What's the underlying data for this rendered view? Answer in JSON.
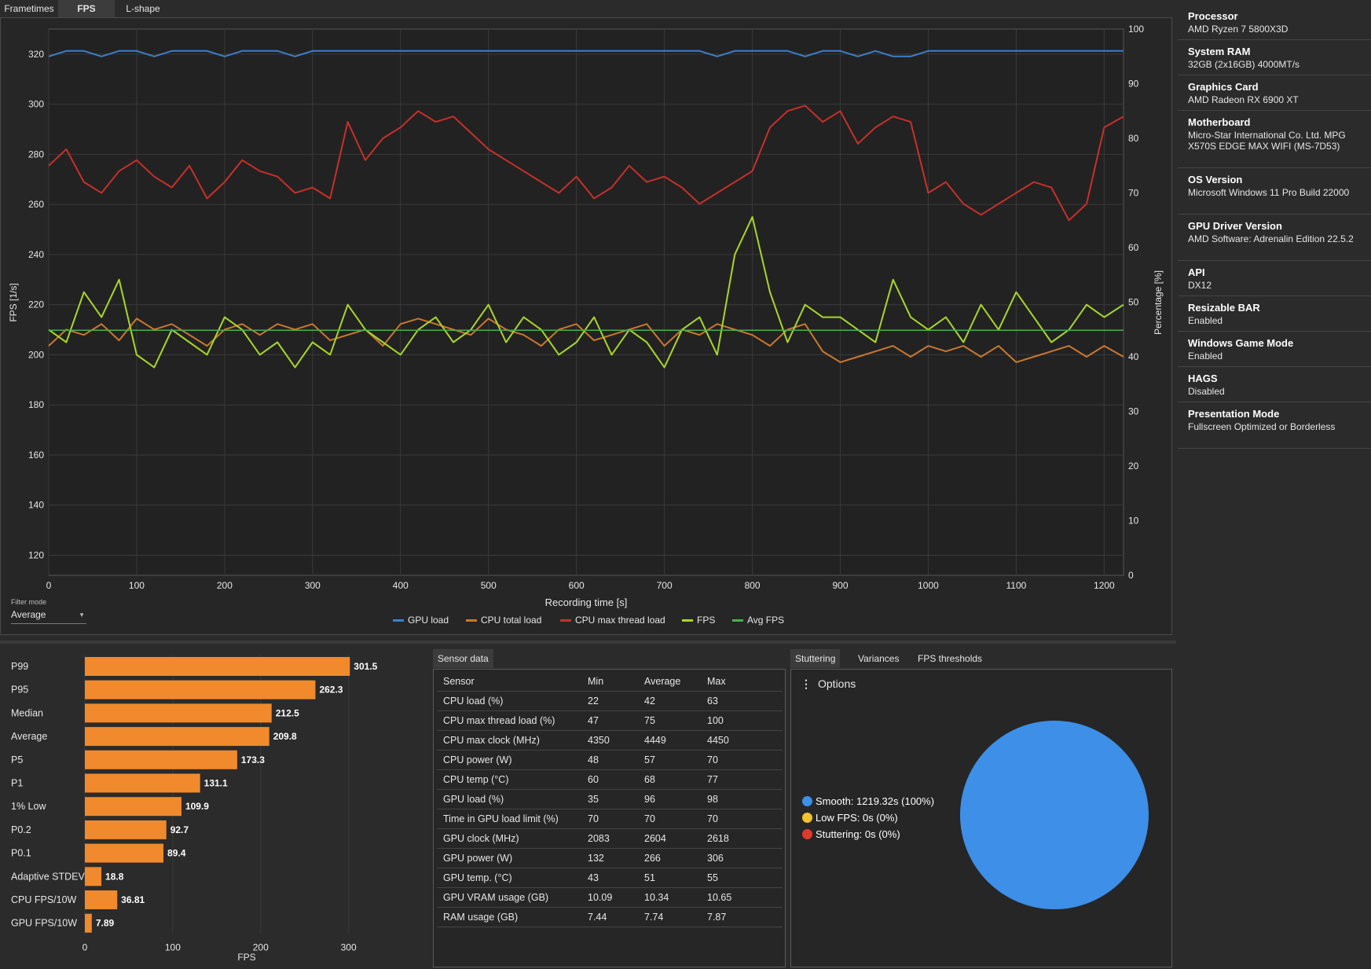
{
  "tabs": [
    "Frametimes",
    "FPS",
    "L-shape"
  ],
  "active_tab": "FPS",
  "chart_data": [
    {
      "type": "line",
      "xlabel": "Recording time [s]",
      "ylabel": "FPS [1/s]",
      "y2label": "Percentage [%]",
      "xlim": [
        0,
        1222
      ],
      "ylim": [
        112,
        330
      ],
      "y2lim": [
        0,
        100
      ],
      "xticks": [
        0,
        100,
        200,
        300,
        400,
        500,
        600,
        700,
        800,
        900,
        1000,
        1100,
        1200
      ],
      "yticks": [
        120,
        140,
        160,
        180,
        200,
        220,
        240,
        260,
        280,
        300,
        320
      ],
      "y2ticks": [
        0,
        10,
        20,
        30,
        40,
        50,
        60,
        70,
        80,
        90,
        100
      ],
      "grid": true,
      "legend_position": "bottom-center",
      "series": [
        {
          "name": "GPU load",
          "axis": "right",
          "color": "#3b7fcc",
          "x": [
            0,
            20,
            40,
            60,
            80,
            100,
            120,
            140,
            160,
            180,
            200,
            220,
            240,
            260,
            280,
            300,
            320,
            340,
            360,
            380,
            400,
            420,
            440,
            460,
            480,
            500,
            520,
            540,
            560,
            580,
            600,
            620,
            640,
            660,
            680,
            700,
            720,
            740,
            760,
            780,
            800,
            820,
            840,
            860,
            880,
            900,
            920,
            940,
            960,
            980,
            1000,
            1020,
            1040,
            1060,
            1080,
            1100,
            1120,
            1140,
            1160,
            1180,
            1200,
            1222
          ],
          "values": [
            95,
            96,
            96,
            95,
            96,
            96,
            95,
            96,
            96,
            96,
            95,
            96,
            96,
            96,
            95,
            96,
            96,
            96,
            96,
            96,
            96,
            96,
            96,
            96,
            96,
            96,
            96,
            96,
            96,
            96,
            96,
            96,
            96,
            96,
            96,
            96,
            96,
            96,
            95,
            96,
            96,
            96,
            96,
            95,
            96,
            96,
            95,
            96,
            95,
            95,
            96,
            96,
            96,
            96,
            96,
            96,
            96,
            96,
            96,
            96,
            96,
            96
          ]
        },
        {
          "name": "CPU total load",
          "axis": "right",
          "color": "#c97830",
          "x": [
            0,
            20,
            40,
            60,
            80,
            100,
            120,
            140,
            160,
            180,
            200,
            220,
            240,
            260,
            280,
            300,
            320,
            340,
            360,
            380,
            400,
            420,
            440,
            460,
            480,
            500,
            520,
            540,
            560,
            580,
            600,
            620,
            640,
            660,
            680,
            700,
            720,
            740,
            760,
            780,
            800,
            820,
            840,
            860,
            880,
            900,
            920,
            940,
            960,
            980,
            1000,
            1020,
            1040,
            1060,
            1080,
            1100,
            1120,
            1140,
            1160,
            1180,
            1200,
            1222
          ],
          "values": [
            42,
            45,
            44,
            46,
            43,
            47,
            45,
            46,
            44,
            42,
            45,
            46,
            44,
            46,
            45,
            46,
            43,
            44,
            45,
            42,
            46,
            47,
            46,
            45,
            44,
            47,
            45,
            44,
            42,
            45,
            46,
            43,
            44,
            45,
            46,
            42,
            45,
            44,
            46,
            45,
            44,
            42,
            45,
            46,
            41,
            39,
            40,
            41,
            42,
            40,
            42,
            41,
            42,
            40,
            42,
            39,
            40,
            41,
            42,
            40,
            42,
            40
          ]
        },
        {
          "name": "CPU max thread load",
          "axis": "right",
          "color": "#c7302a",
          "x": [
            0,
            20,
            40,
            60,
            80,
            100,
            120,
            140,
            160,
            180,
            200,
            220,
            240,
            260,
            280,
            300,
            320,
            340,
            360,
            380,
            400,
            420,
            440,
            460,
            480,
            500,
            520,
            540,
            560,
            580,
            600,
            620,
            640,
            660,
            680,
            700,
            720,
            740,
            760,
            780,
            800,
            820,
            840,
            860,
            880,
            900,
            920,
            940,
            960,
            980,
            1000,
            1020,
            1040,
            1060,
            1080,
            1100,
            1120,
            1140,
            1160,
            1180,
            1200,
            1222
          ],
          "values": [
            75,
            78,
            72,
            70,
            74,
            76,
            73,
            71,
            75,
            69,
            72,
            76,
            74,
            73,
            70,
            71,
            69,
            83,
            76,
            80,
            82,
            85,
            83,
            84,
            81,
            78,
            76,
            74,
            72,
            70,
            73,
            69,
            71,
            75,
            72,
            73,
            71,
            68,
            70,
            72,
            74,
            82,
            85,
            86,
            83,
            85,
            79,
            82,
            84,
            83,
            70,
            72,
            68,
            66,
            68,
            70,
            72,
            71,
            65,
            68,
            82,
            84
          ]
        },
        {
          "name": "FPS",
          "axis": "left",
          "color": "#a8d62a",
          "x": [
            0,
            20,
            40,
            60,
            80,
            100,
            120,
            140,
            160,
            180,
            200,
            220,
            240,
            260,
            280,
            300,
            320,
            340,
            360,
            380,
            400,
            420,
            440,
            460,
            480,
            500,
            520,
            540,
            560,
            580,
            600,
            620,
            640,
            660,
            680,
            700,
            720,
            740,
            760,
            780,
            800,
            820,
            840,
            860,
            880,
            900,
            920,
            940,
            960,
            980,
            1000,
            1020,
            1040,
            1060,
            1080,
            1100,
            1120,
            1140,
            1160,
            1180,
            1200,
            1222
          ],
          "values": [
            210,
            205,
            225,
            215,
            230,
            200,
            195,
            210,
            205,
            200,
            215,
            210,
            200,
            205,
            195,
            205,
            200,
            220,
            210,
            205,
            200,
            210,
            215,
            205,
            210,
            220,
            205,
            215,
            210,
            200,
            205,
            215,
            200,
            210,
            205,
            195,
            210,
            215,
            200,
            240,
            255,
            225,
            205,
            220,
            215,
            215,
            210,
            205,
            230,
            215,
            210,
            215,
            205,
            220,
            210,
            225,
            215,
            205,
            210,
            220,
            215,
            220
          ]
        },
        {
          "name": "Avg FPS",
          "axis": "left",
          "color": "#4caf50",
          "x": [
            0,
            1222
          ],
          "values": [
            209.8,
            209.8
          ]
        }
      ]
    },
    {
      "type": "bar",
      "orientation": "horizontal",
      "xlabel": "FPS",
      "xlim": [
        0,
        320
      ],
      "xticks": [
        0,
        100,
        200,
        300
      ],
      "grid": true,
      "color": "#f08a2c",
      "categories": [
        "P99",
        "P95",
        "Median",
        "Average",
        "P5",
        "P1",
        "1% Low",
        "P0.2",
        "P0.1",
        "Adaptive STDEV",
        "CPU FPS/10W",
        "GPU FPS/10W"
      ],
      "values": [
        301.5,
        262.3,
        212.5,
        209.8,
        173.3,
        131.1,
        109.9,
        92.7,
        89.4,
        18.8,
        36.81,
        7.89
      ],
      "labels": [
        "301.5",
        "262.3",
        "212.5",
        "209.8",
        "173.3",
        "131.1",
        "109.9",
        "92.7",
        "89.4",
        "18.8",
        "36.81",
        "7.89"
      ]
    },
    {
      "type": "pie",
      "categories": [
        "Smooth",
        "Low FPS",
        "Stuttering"
      ],
      "values": [
        100,
        0,
        0
      ],
      "colors": [
        "#3d8fe8",
        "#f2c12e",
        "#e03a2a"
      ],
      "labels": [
        "Smooth:  1219.32s (100%)",
        "Low FPS:  0s (0%)",
        "Stuttering:  0s (0%)"
      ]
    }
  ],
  "filter": {
    "label": "Filter mode",
    "value": "Average"
  },
  "system_info": [
    {
      "label": "Processor",
      "value": "AMD Ryzen 7 5800X3D"
    },
    {
      "label": "System RAM",
      "value": "32GB (2x16GB) 4000MT/s"
    },
    {
      "label": "Graphics Card",
      "value": "AMD Radeon RX 6900 XT"
    },
    {
      "label": "Motherboard",
      "value": "Micro-Star International Co. Ltd. MPG X570S EDGE MAX WIFI (MS-7D53)"
    },
    {
      "label": "OS Version",
      "value": "Microsoft Windows 11 Pro Build 22000"
    },
    {
      "label": "GPU Driver Version",
      "value": "AMD Software: Adrenalin Edition 22.5.2"
    },
    {
      "label": "API",
      "value": "DX12"
    },
    {
      "label": "Resizable BAR",
      "value": "Enabled"
    },
    {
      "label": "Windows Game Mode",
      "value": "Enabled"
    },
    {
      "label": "HAGS",
      "value": "Disabled"
    },
    {
      "label": "Presentation Mode",
      "value": "Fullscreen Optimized or Borderless"
    }
  ],
  "sensor": {
    "tab": "Sensor data",
    "headers": [
      "Sensor",
      "Min",
      "Average",
      "Max"
    ],
    "rows": [
      [
        "CPU load (%)",
        "22",
        "42",
        "63"
      ],
      [
        "CPU max thread load (%)",
        "47",
        "75",
        "100"
      ],
      [
        "CPU max clock (MHz)",
        "4350",
        "4449",
        "4450"
      ],
      [
        "CPU power (W)",
        "48",
        "57",
        "70"
      ],
      [
        "CPU temp (°C)",
        "60",
        "68",
        "77"
      ],
      [
        "GPU load (%)",
        "35",
        "96",
        "98"
      ],
      [
        "Time in GPU load limit (%)",
        "70",
        "70",
        "70"
      ],
      [
        "GPU clock (MHz)",
        "2083",
        "2604",
        "2618"
      ],
      [
        "GPU power (W)",
        "132",
        "266",
        "306"
      ],
      [
        "GPU temp. (°C)",
        "43",
        "51",
        "55"
      ],
      [
        "GPU VRAM usage (GB)",
        "10.09",
        "10.34",
        "10.65"
      ],
      [
        "RAM usage (GB)",
        "7.44",
        "7.74",
        "7.87"
      ]
    ]
  },
  "stutter": {
    "tabs": [
      "Stuttering",
      "Variances",
      "FPS thresholds"
    ],
    "active": "Stuttering",
    "options_label": "Options"
  }
}
